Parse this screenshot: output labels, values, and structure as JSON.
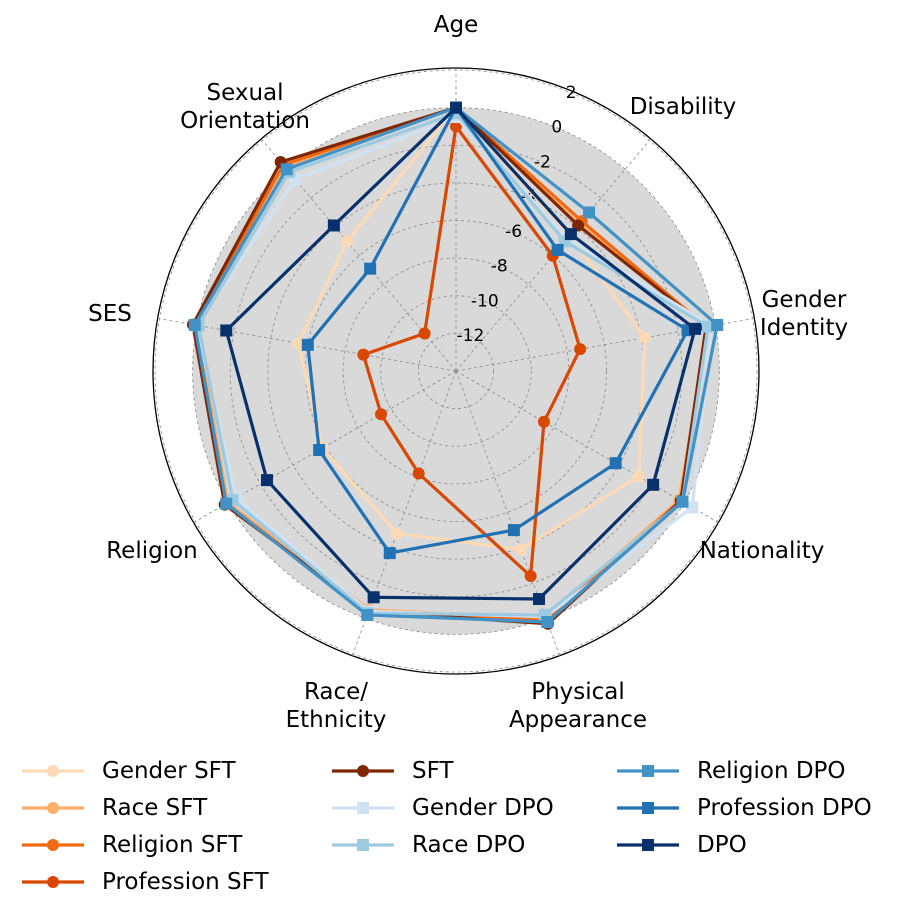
{
  "chart_data": {
    "type": "radar",
    "axes": [
      "Age",
      "Disability",
      "Gender Identity",
      "Nationality",
      "Physical Appearance",
      "Race/ Ethnicity",
      "Religion",
      "SES",
      "Sexual Orientation"
    ],
    "r_range": [
      -14,
      2
    ],
    "r_ticks": [
      "2",
      "0",
      "-2",
      "-4",
      "-6",
      "-8",
      "-10",
      "-12"
    ],
    "grid": true,
    "series": [
      {
        "name": "Gender SFT",
        "color": "#fdd9b5",
        "marker": "circle",
        "values": [
          0.0,
          -4.6,
          -3.8,
          -2.8,
          -3.9,
          -4.8,
          -5.8,
          -5.5,
          -5.0
        ]
      },
      {
        "name": "Race SFT",
        "color": "#fdae6b",
        "marker": "circle",
        "values": [
          0.0,
          -3.8,
          -0.4,
          -0.3,
          0.0,
          -0.5,
          0.0,
          0.0,
          0.1
        ]
      },
      {
        "name": "Religion SFT",
        "color": "#f16913",
        "marker": "circle",
        "values": [
          0.0,
          -3.6,
          -0.5,
          -0.2,
          0.1,
          -0.3,
          0.1,
          0.1,
          0.3
        ]
      },
      {
        "name": "Profession SFT",
        "color": "#d94801",
        "marker": "circle",
        "values": [
          -1.0,
          -6.0,
          -7.3,
          -8.6,
          -2.4,
          -8.2,
          -9.4,
          -9.0,
          -11.4
        ]
      },
      {
        "name": "SFT",
        "color": "#7f2704",
        "marker": "circle",
        "values": [
          0.0,
          -3.9,
          -0.5,
          -0.2,
          0.3,
          -0.4,
          0.2,
          0.2,
          0.5
        ]
      },
      {
        "name": "Gender DPO",
        "color": "#d0e1f2",
        "marker": "square",
        "values": [
          -0.5,
          -4.8,
          -0.2,
          0.5,
          -0.1,
          -0.4,
          -0.5,
          0.0,
          -0.7
        ]
      },
      {
        "name": "Race DPO",
        "color": "#9ecae1",
        "marker": "square",
        "values": [
          -0.3,
          -5.0,
          -0.4,
          -0.1,
          -0.2,
          -0.3,
          -0.3,
          -0.1,
          -0.2
        ]
      },
      {
        "name": "Religion DPO",
        "color": "#4292c6",
        "marker": "square",
        "values": [
          0.0,
          -3.0,
          0.1,
          -0.1,
          0.2,
          -0.2,
          0.1,
          0.1,
          0.0
        ]
      },
      {
        "name": "Profession DPO",
        "color": "#2171b5",
        "marker": "square",
        "values": [
          0.0,
          -5.6,
          -1.5,
          -4.2,
          -5.0,
          -3.7,
          -5.6,
          -6.0,
          -6.9
        ]
      },
      {
        "name": "DPO",
        "color": "#08306b",
        "marker": "square",
        "values": [
          0.0,
          -4.5,
          -1.1,
          -1.9,
          -1.1,
          -1.2,
          -2.4,
          -1.6,
          -3.9
        ]
      }
    ]
  }
}
